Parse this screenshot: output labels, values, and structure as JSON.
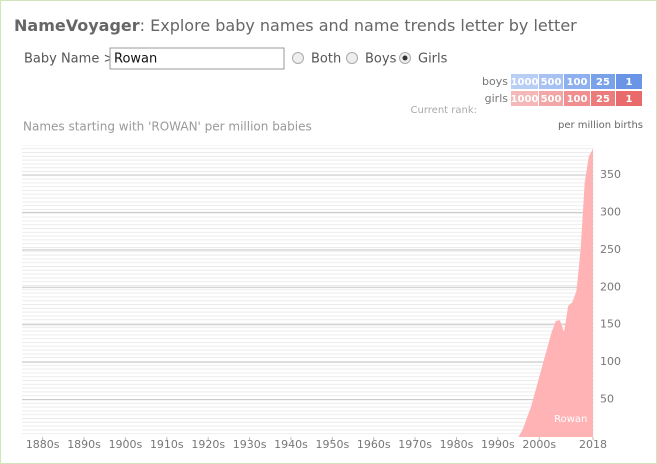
{
  "header": {
    "brand": "NameVoyager",
    "title": ": Explore baby names and name trends letter by letter"
  },
  "form": {
    "label": "Baby Name >",
    "input": "Rowan",
    "options": [
      "Both",
      "Boys",
      "Girls"
    ],
    "selected": 2
  },
  "rank_legend": {
    "rows": [
      "boys",
      "girls"
    ],
    "ranks": [
      "1000",
      "500",
      "100",
      "25",
      "1"
    ],
    "caption": "Current rank:"
  },
  "chart_data": {
    "type": "area",
    "title": "Names starting with 'ROWAN' per million babies",
    "y_label": "per million births",
    "x": [
      2000,
      2001,
      2002,
      2003,
      2004,
      2005,
      2006,
      2007,
      2008,
      2009,
      2010,
      2011,
      2012,
      2013,
      2014,
      2015,
      2016,
      2017,
      2018
    ],
    "series": [
      {
        "name": "Rowan",
        "color": "#ffb3b5",
        "values": [
          0,
          10,
          25,
          40,
          60,
          80,
          100,
          120,
          140,
          155,
          156,
          140,
          175,
          180,
          195,
          250,
          340,
          375,
          385
        ]
      }
    ],
    "xlim": [
      1880,
      2018
    ],
    "xticks": [
      {
        "value": 1885,
        "label": "1880s"
      },
      {
        "value": 1895,
        "label": "1890s"
      },
      {
        "value": 1905,
        "label": "1900s"
      },
      {
        "value": 1915,
        "label": "1910s"
      },
      {
        "value": 1925,
        "label": "1920s"
      },
      {
        "value": 1935,
        "label": "1930s"
      },
      {
        "value": 1945,
        "label": "1940s"
      },
      {
        "value": 1955,
        "label": "1950s"
      },
      {
        "value": 1965,
        "label": "1960s"
      },
      {
        "value": 1975,
        "label": "1970s"
      },
      {
        "value": 1985,
        "label": "1980s"
      },
      {
        "value": 1995,
        "label": "1990s"
      },
      {
        "value": 2005,
        "label": "2000s"
      },
      2018
    ],
    "ylim": [
      0,
      390
    ],
    "yticks": [
      50,
      100,
      150,
      200,
      250,
      300,
      350
    ],
    "grid": true
  }
}
